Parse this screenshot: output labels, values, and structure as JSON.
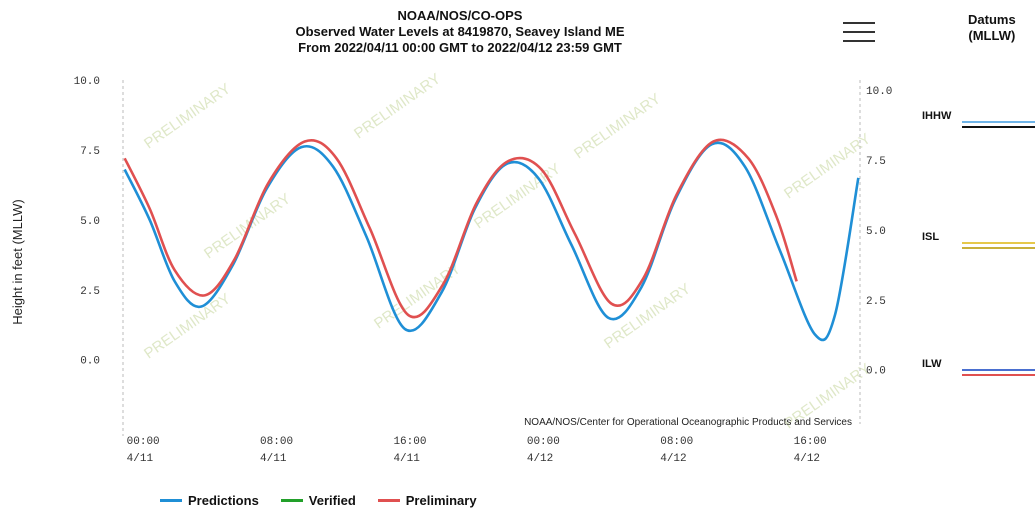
{
  "header": {
    "line1": "NOAA/NOS/CO-OPS",
    "line2": "Observed Water Levels at 8419870, Seavey Island ME",
    "line3": "From 2022/04/11 00:00 GMT to 2022/04/12 23:59 GMT"
  },
  "datums": {
    "title_line1": "Datums",
    "title_line2": "(MLLW)",
    "items": [
      {
        "label": "IHHW",
        "value": 8.8,
        "colors": [
          "#6fb4e8",
          "#111111"
        ]
      },
      {
        "label": "ISL",
        "value": 4.3,
        "colors": [
          "#e6c84a",
          "#c9b03a"
        ]
      },
      {
        "label": "ILW",
        "value": -0.2,
        "colors": [
          "#4a6fd0",
          "#e05050"
        ]
      }
    ]
  },
  "credit": "NOAA/NOS/Center for Operational Oceanographic Products and Services",
  "watermark": "PRELIMINARY",
  "colors": {
    "predictions": "#1f8fd6",
    "verified": "#22a02a",
    "preliminary": "#e05050"
  },
  "chart_data": {
    "type": "line",
    "ylabel": "Height in feet (MLLW)",
    "ylim": [
      -2.3,
      10.0
    ],
    "xlim": [
      -0.1,
      44.1
    ],
    "yticks": [
      "10.0",
      "7.5",
      "5.0",
      "2.5",
      "0.0"
    ],
    "ytick_values": [
      10.0,
      7.5,
      5.0,
      2.5,
      0.0
    ],
    "right_yticks": [
      "10.0",
      "7.5",
      "5.0",
      "2.5",
      "0.0"
    ],
    "right_ytick_values": [
      10.0,
      7.5,
      5.0,
      2.5,
      0.0
    ],
    "xticks": [
      {
        "time": "00:00",
        "date": "4/11",
        "x": 0
      },
      {
        "time": "08:00",
        "date": "4/11",
        "x": 8
      },
      {
        "time": "16:00",
        "date": "4/11",
        "x": 16
      },
      {
        "time": "00:00",
        "date": "4/12",
        "x": 24
      },
      {
        "time": "08:00",
        "date": "4/12",
        "x": 32
      },
      {
        "time": "16:00",
        "date": "4/12",
        "x": 40
      }
    ],
    "series": [
      {
        "name": "Predictions",
        "points": [
          [
            0,
            6.8
          ],
          [
            1.5,
            5.0
          ],
          [
            3,
            2.8
          ],
          [
            4.6,
            1.9
          ],
          [
            6.5,
            3.4
          ],
          [
            8.5,
            6.1
          ],
          [
            10.6,
            7.6
          ],
          [
            12.5,
            6.9
          ],
          [
            14.5,
            4.4
          ],
          [
            16.8,
            1.1
          ],
          [
            19,
            2.4
          ],
          [
            21,
            5.4
          ],
          [
            22.9,
            7.0
          ],
          [
            24.8,
            6.5
          ],
          [
            26.8,
            4.1
          ],
          [
            29,
            1.5
          ],
          [
            31,
            2.6
          ],
          [
            33,
            5.7
          ],
          [
            35.2,
            7.7
          ],
          [
            37.2,
            6.9
          ],
          [
            39.3,
            3.9
          ],
          [
            41.4,
            0.9
          ],
          [
            42.6,
            1.6
          ],
          [
            44,
            6.5
          ]
        ]
      },
      {
        "name": "Verified",
        "points": []
      },
      {
        "name": "Preliminary",
        "points": [
          [
            0,
            7.2
          ],
          [
            1.5,
            5.4
          ],
          [
            3,
            3.2
          ],
          [
            4.8,
            2.3
          ],
          [
            6.6,
            3.6
          ],
          [
            8.6,
            6.3
          ],
          [
            10.8,
            7.8
          ],
          [
            12.7,
            7.2
          ],
          [
            14.7,
            4.7
          ],
          [
            17,
            1.6
          ],
          [
            19.1,
            2.7
          ],
          [
            21.1,
            5.6
          ],
          [
            23,
            7.1
          ],
          [
            25,
            6.8
          ],
          [
            27,
            4.5
          ],
          [
            29.2,
            2.0
          ],
          [
            31.1,
            2.9
          ],
          [
            33.1,
            5.9
          ],
          [
            35.3,
            7.8
          ],
          [
            37.4,
            7.2
          ],
          [
            39.1,
            5.1
          ],
          [
            40.3,
            2.8
          ]
        ]
      }
    ],
    "legend": [
      "Predictions",
      "Verified",
      "Preliminary"
    ],
    "legend_position": "bottom"
  }
}
